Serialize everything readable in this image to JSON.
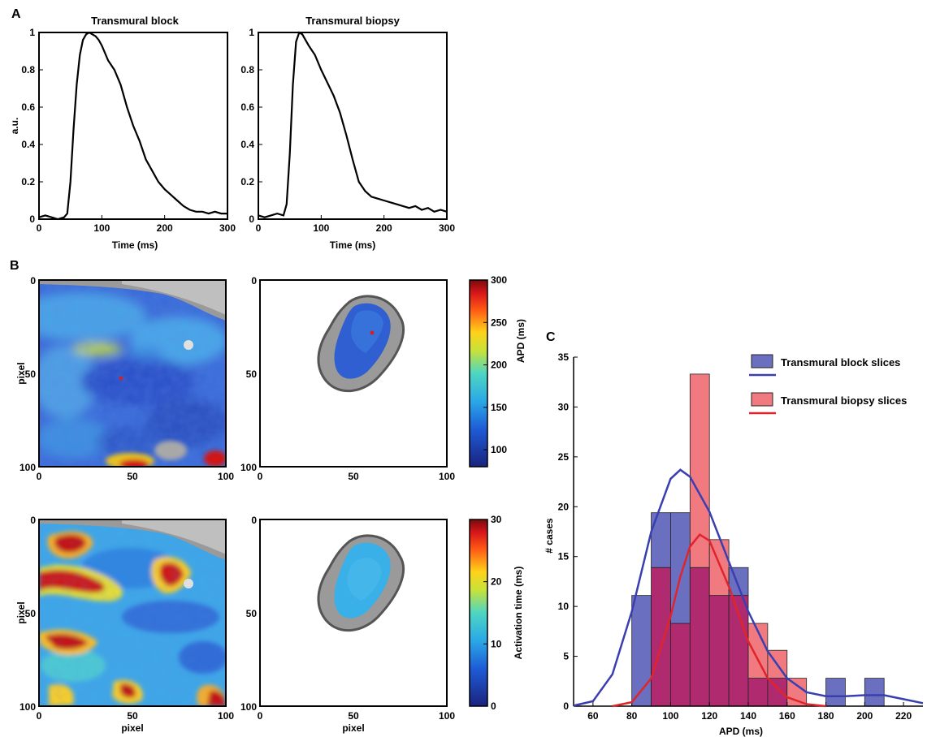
{
  "panels": {
    "a": "A",
    "b": "B",
    "c": "C"
  },
  "colors": {
    "block": "#3a3fb0",
    "biopsy": "#e0242c",
    "block_fill": "#6a6fc0",
    "biopsy_fill": "#f07a80",
    "overlap_fill": "#b02a70"
  },
  "chart_data": [
    {
      "type": "line",
      "title": "Transmural block",
      "xlabel": "Time (ms)",
      "ylabel": "a.u.",
      "xlim": [
        0,
        300
      ],
      "ylim": [
        0,
        1
      ],
      "xticks": [
        "0",
        "100",
        "200",
        "300"
      ],
      "yticks": [
        "0",
        "0.2",
        "0.4",
        "0.6",
        "0.8",
        "1"
      ],
      "series": [
        {
          "x": [
            0,
            10,
            20,
            30,
            40,
            45,
            50,
            55,
            60,
            65,
            70,
            75,
            80,
            85,
            90,
            95,
            100,
            110,
            120,
            130,
            140,
            150,
            160,
            170,
            180,
            190,
            200,
            210,
            220,
            230,
            240,
            250,
            260,
            270,
            280,
            290,
            300
          ],
          "y": [
            0.01,
            0.02,
            0.01,
            0.0,
            0.01,
            0.03,
            0.2,
            0.48,
            0.72,
            0.88,
            0.96,
            0.99,
            1.0,
            0.99,
            0.98,
            0.96,
            0.93,
            0.85,
            0.8,
            0.72,
            0.6,
            0.5,
            0.42,
            0.32,
            0.26,
            0.2,
            0.16,
            0.13,
            0.1,
            0.07,
            0.05,
            0.04,
            0.04,
            0.03,
            0.04,
            0.03,
            0.03
          ]
        }
      ]
    },
    {
      "type": "line",
      "title": "Transmural biopsy",
      "xlabel": "Time (ms)",
      "ylabel": "",
      "xlim": [
        0,
        300
      ],
      "ylim": [
        0,
        1
      ],
      "xticks": [
        "0",
        "100",
        "200",
        "300"
      ],
      "yticks": [
        "0",
        "0.2",
        "0.4",
        "0.6",
        "0.8",
        "1"
      ],
      "series": [
        {
          "x": [
            0,
            10,
            20,
            30,
            40,
            45,
            50,
            55,
            60,
            65,
            70,
            75,
            80,
            90,
            100,
            110,
            120,
            130,
            140,
            150,
            160,
            170,
            180,
            190,
            200,
            210,
            220,
            230,
            240,
            250,
            260,
            270,
            280,
            290,
            300
          ],
          "y": [
            0.02,
            0.01,
            0.02,
            0.03,
            0.02,
            0.08,
            0.35,
            0.72,
            0.95,
            1.0,
            0.99,
            0.96,
            0.93,
            0.88,
            0.8,
            0.73,
            0.66,
            0.57,
            0.45,
            0.32,
            0.2,
            0.15,
            0.12,
            0.11,
            0.1,
            0.09,
            0.08,
            0.07,
            0.06,
            0.07,
            0.05,
            0.06,
            0.04,
            0.05,
            0.04
          ]
        }
      ]
    },
    {
      "type": "heatmap",
      "xlabel": "",
      "ylabel": "pixel",
      "xlim": [
        0,
        100
      ],
      "ylim": [
        0,
        100
      ],
      "xticks": [
        "0",
        "50",
        "100"
      ],
      "yticks": [
        "0",
        "50",
        "100"
      ],
      "colorbar": {
        "label": "APD (ms)",
        "range": [
          80,
          300
        ],
        "ticks": [
          "100",
          "150",
          "200",
          "250",
          "300"
        ]
      }
    },
    {
      "type": "heatmap",
      "xlabel": "",
      "ylabel": "",
      "xlim": [
        0,
        100
      ],
      "ylim": [
        0,
        100
      ],
      "xticks": [
        "0",
        "50",
        "100"
      ],
      "yticks": [
        "0",
        "50",
        "100"
      ]
    },
    {
      "type": "heatmap",
      "xlabel": "pixel",
      "ylabel": "pixel",
      "xlim": [
        0,
        100
      ],
      "ylim": [
        0,
        100
      ],
      "xticks": [
        "0",
        "50",
        "100"
      ],
      "yticks": [
        "0",
        "50",
        "100"
      ],
      "colorbar": {
        "label": "Activation time (ms)",
        "range": [
          0,
          30
        ],
        "ticks": [
          "0",
          "10",
          "20",
          "30"
        ]
      }
    },
    {
      "type": "heatmap",
      "xlabel": "pixel",
      "ylabel": "",
      "xlim": [
        0,
        100
      ],
      "ylim": [
        0,
        100
      ],
      "xticks": [
        "0",
        "50",
        "100"
      ],
      "yticks": [
        "0",
        "50",
        "100"
      ]
    },
    {
      "type": "bar",
      "xlabel": "APD (ms)",
      "ylabel": "# cases",
      "xlim": [
        50,
        230
      ],
      "ylim": [
        0,
        35
      ],
      "xticks": [
        "60",
        "80",
        "100",
        "120",
        "140",
        "160",
        "180",
        "200",
        "220"
      ],
      "yticks": [
        "0",
        "5",
        "10",
        "15",
        "20",
        "25",
        "30",
        "35"
      ],
      "bin_edges": [
        80,
        90,
        100,
        110,
        120,
        130,
        140,
        150,
        160,
        170,
        180,
        190,
        200,
        210
      ],
      "series": [
        {
          "name": "Transmural block slices",
          "values": [
            11.1,
            19.4,
            19.4,
            13.9,
            11.1,
            13.9,
            2.8,
            2.8,
            0,
            0,
            2.8,
            0,
            2.8
          ],
          "fit": {
            "x": [
              50,
              60,
              70,
              80,
              90,
              100,
              105,
              110,
              120,
              130,
              140,
              150,
              160,
              170,
              180,
              190,
              200,
              210,
              220,
              230
            ],
            "y": [
              0.05,
              0.5,
              3.2,
              9.5,
              17.5,
              22.8,
              23.7,
              23.0,
              19.5,
              14.5,
              9.5,
              5.5,
              2.8,
              1.4,
              1.0,
              1.0,
              1.1,
              1.1,
              0.7,
              0.3
            ]
          }
        },
        {
          "name": "Transmural biopsy slices",
          "values": [
            0,
            13.9,
            8.3,
            33.3,
            16.7,
            11.1,
            8.3,
            5.6,
            2.8,
            0,
            0,
            0,
            0
          ],
          "fit": {
            "x": [
              70,
              80,
              90,
              100,
              105,
              110,
              115,
              120,
              130,
              140,
              150,
              160,
              170,
              180
            ],
            "y": [
              0.0,
              0.4,
              2.8,
              9.0,
              13.0,
              16.0,
              17.2,
              16.6,
              12.0,
              6.5,
              2.8,
              0.9,
              0.2,
              0.0
            ]
          }
        }
      ],
      "legend": "top-right"
    }
  ]
}
